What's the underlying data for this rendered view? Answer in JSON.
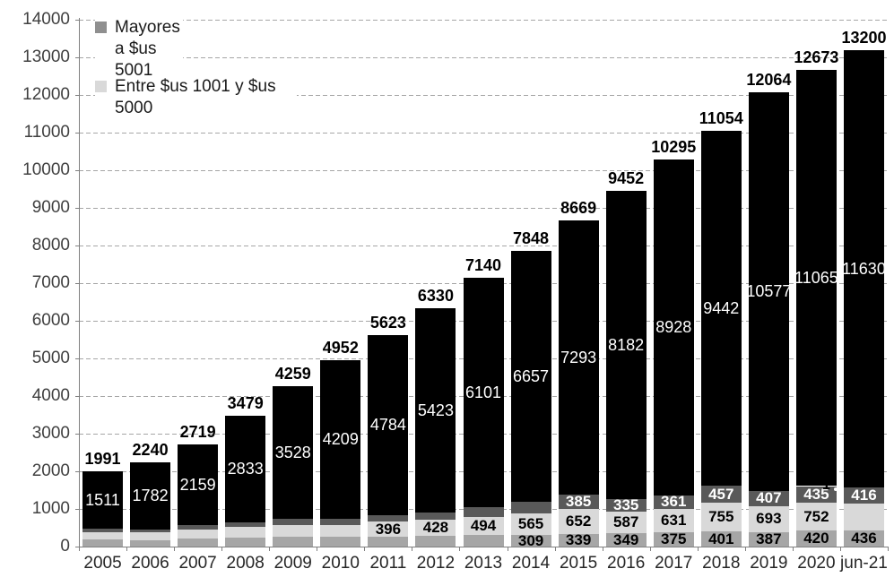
{
  "legend": {
    "items": [
      {
        "label": "Mayores a $us 5001",
        "swatch_color": "#8f8f8f"
      },
      {
        "label": "Entre $us 1001 y $us 5000",
        "swatch_color": "#d9d9d9"
      }
    ]
  },
  "stray_label": "1",
  "chart_data": {
    "type": "bar",
    "stacked": true,
    "title": "",
    "xlabel": "",
    "ylabel": "",
    "ylim": [
      0,
      14000
    ],
    "yticks": [
      0,
      1000,
      2000,
      3000,
      4000,
      5000,
      6000,
      7000,
      8000,
      9000,
      10000,
      11000,
      12000,
      13000,
      14000
    ],
    "grid": "horizontal-dashed",
    "legend_position": "top-left-inside",
    "categories": [
      "2005",
      "2006",
      "2007",
      "2008",
      "2009",
      "2010",
      "2011",
      "2012",
      "2013",
      "2014",
      "2015",
      "2016",
      "2017",
      "2018",
      "2019",
      "2020",
      "jun-21"
    ],
    "totals": [
      1991,
      2240,
      2719,
      3479,
      4259,
      4952,
      5623,
      6330,
      7140,
      7848,
      8669,
      9452,
      10295,
      11054,
      12064,
      12673,
      13200
    ],
    "series": [
      {
        "name": "base-gray",
        "legend": null,
        "color": "#a6a6a6",
        "label_color": "#000000",
        "values": [
          190,
          170,
          205,
          230,
          255,
          255,
          265,
          280,
          300,
          309,
          339,
          349,
          375,
          401,
          387,
          420,
          436
        ],
        "labels": [
          null,
          null,
          null,
          null,
          null,
          null,
          null,
          null,
          null,
          "309",
          "339",
          "349",
          "375",
          "401",
          "387",
          "420",
          "436"
        ]
      },
      {
        "name": "entre-1001-5000",
        "legend": "Entre $us 1001 y $us 5000",
        "color": "#d9d9d9",
        "label_color": "#000000",
        "values": [
          200,
          200,
          245,
          285,
          320,
          325,
          396,
          428,
          494,
          565,
          652,
          587,
          631,
          755,
          693,
          752,
          718
        ],
        "labels": [
          null,
          null,
          null,
          null,
          null,
          null,
          "396",
          "428",
          "494",
          "565",
          "652",
          "587",
          "631",
          "755",
          "693",
          "752",
          null
        ]
      },
      {
        "name": "mayores-5001",
        "legend": "Mayores a $us 5001",
        "color": "#595959",
        "label_color": "#ffffff",
        "values": [
          90,
          88,
          110,
          131,
          156,
          163,
          178,
          199,
          245,
          317,
          385,
          335,
          361,
          457,
          407,
          435,
          416
        ],
        "labels": [
          null,
          null,
          null,
          null,
          null,
          null,
          null,
          null,
          null,
          null,
          "385",
          "335",
          "361",
          "457",
          "407",
          "435",
          "416"
        ]
      },
      {
        "name": "principal-black",
        "legend": null,
        "color": "#000000",
        "label_color": "#ffffff",
        "values": [
          1511,
          1782,
          2159,
          2833,
          3528,
          4209,
          4784,
          5423,
          6101,
          6657,
          7293,
          8182,
          8928,
          9442,
          10577,
          11065,
          11630
        ],
        "labels": [
          "1511",
          "1782",
          "2159",
          "2833",
          "3528",
          "4209",
          "4784",
          "5423",
          "6101",
          "6657",
          "7293",
          "8182",
          "8928",
          "9442",
          "10577",
          "11065",
          "11630"
        ]
      }
    ]
  }
}
